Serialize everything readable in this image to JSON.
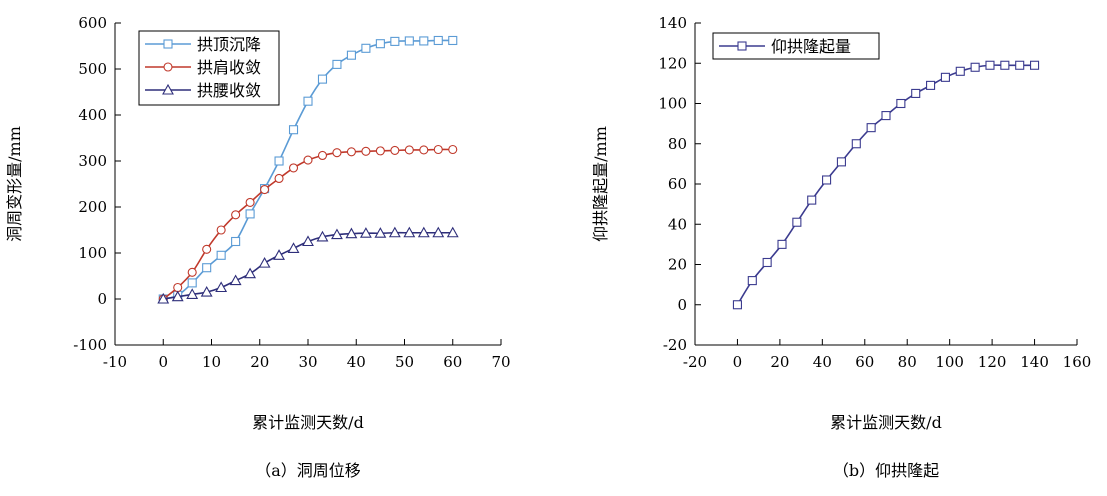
{
  "chart_data": [
    {
      "type": "line",
      "caption": "（a）洞周位移",
      "xlabel": "累计监测天数/d",
      "ylabel": "洞周变形量/mm",
      "xlim": [
        -10,
        70
      ],
      "ylim": [
        -100,
        600
      ],
      "xticks": [
        -10,
        0,
        10,
        20,
        30,
        40,
        50,
        60,
        70
      ],
      "yticks": [
        -100,
        0,
        100,
        200,
        300,
        400,
        500,
        600
      ],
      "legend_position": "top-left",
      "grid": false,
      "series": [
        {
          "name": "拱顶沉降",
          "color": "#5b9bd5",
          "marker": "square",
          "x": [
            0,
            3,
            6,
            9,
            12,
            15,
            18,
            21,
            24,
            27,
            30,
            33,
            36,
            39,
            42,
            45,
            48,
            51,
            54,
            57,
            60
          ],
          "y": [
            0,
            8,
            35,
            68,
            95,
            125,
            185,
            240,
            300,
            368,
            430,
            478,
            510,
            530,
            545,
            555,
            560,
            561,
            561,
            562,
            562
          ]
        },
        {
          "name": "拱肩收敛",
          "color": "#c0392b",
          "marker": "circle",
          "x": [
            0,
            3,
            6,
            9,
            12,
            15,
            18,
            21,
            24,
            27,
            30,
            33,
            36,
            39,
            42,
            45,
            48,
            51,
            54,
            57,
            60
          ],
          "y": [
            0,
            25,
            58,
            108,
            150,
            183,
            210,
            238,
            262,
            285,
            302,
            312,
            318,
            320,
            321,
            322,
            323,
            324,
            324,
            325,
            325
          ]
        },
        {
          "name": "拱腰收敛",
          "color": "#2e2e7a",
          "marker": "triangle",
          "x": [
            0,
            3,
            6,
            9,
            12,
            15,
            18,
            21,
            24,
            27,
            30,
            33,
            36,
            39,
            42,
            45,
            48,
            51,
            54,
            57,
            60
          ],
          "y": [
            0,
            5,
            10,
            15,
            25,
            40,
            55,
            78,
            95,
            110,
            125,
            135,
            140,
            142,
            143,
            143,
            144,
            144,
            144,
            144,
            144
          ]
        }
      ]
    },
    {
      "type": "line",
      "caption": "（b）仰拱隆起",
      "xlabel": "累计监测天数/d",
      "ylabel": "仰拱隆起量/mm",
      "xlim": [
        -20,
        160
      ],
      "ylim": [
        -20,
        140
      ],
      "xticks": [
        -20,
        0,
        20,
        40,
        60,
        80,
        100,
        120,
        140,
        160
      ],
      "yticks": [
        -20,
        0,
        20,
        40,
        60,
        80,
        100,
        120,
        140
      ],
      "legend_position": "top-left",
      "grid": false,
      "series": [
        {
          "name": "仰拱隆起量",
          "color": "#3b3b8f",
          "marker": "square",
          "x": [
            0,
            7,
            14,
            21,
            28,
            35,
            42,
            49,
            56,
            63,
            70,
            77,
            84,
            91,
            98,
            105,
            112,
            119,
            126,
            133,
            140
          ],
          "y": [
            0,
            12,
            21,
            30,
            41,
            52,
            62,
            71,
            80,
            88,
            94,
            100,
            105,
            109,
            113,
            116,
            118,
            119,
            119,
            119,
            119
          ]
        }
      ]
    }
  ]
}
